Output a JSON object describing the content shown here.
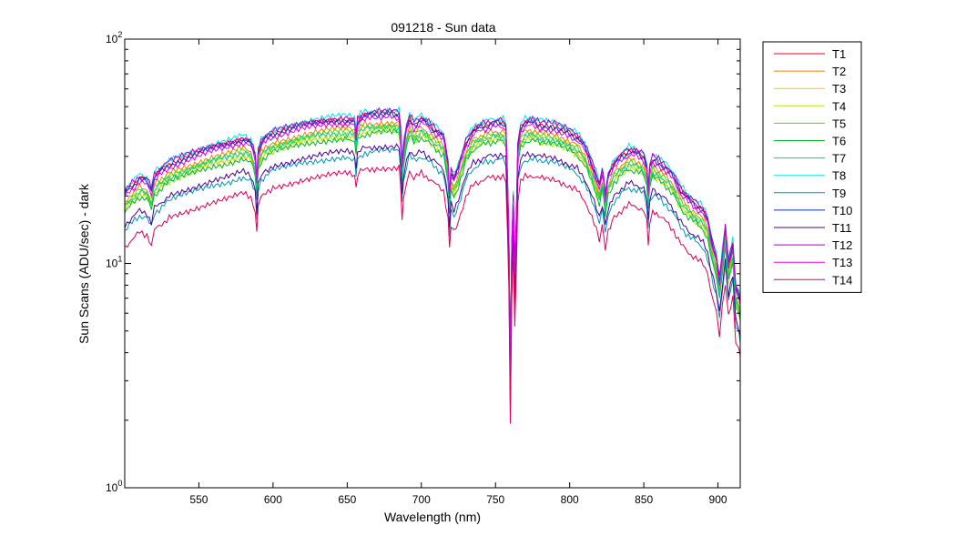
{
  "chart_data": {
    "type": "line",
    "title": "091218 - Sun data",
    "xlabel": "Wavelength (nm)",
    "ylabel": "Sun Scans (ADU/sec) - dark",
    "xlim": [
      500,
      915
    ],
    "ylim": [
      1,
      100
    ],
    "yscale": "log",
    "x_ticks": [
      550,
      600,
      650,
      700,
      750,
      800,
      850,
      900
    ],
    "y_ticks": [
      {
        "base": "10",
        "exp": "0"
      },
      {
        "base": "10",
        "exp": "1"
      },
      {
        "base": "10",
        "exp": "2"
      }
    ],
    "grid": false,
    "legend": "outside-right",
    "base_curve": {
      "x": [
        500,
        505,
        510,
        515,
        518,
        520,
        525,
        530,
        540,
        550,
        560,
        570,
        580,
        585,
        588,
        589,
        590,
        592,
        595,
        600,
        610,
        620,
        630,
        640,
        650,
        655,
        656,
        657,
        659,
        662,
        670,
        680,
        685,
        686,
        687,
        688,
        690,
        692,
        695,
        700,
        705,
        710,
        715,
        718,
        719,
        720,
        722,
        725,
        728,
        730,
        735,
        740,
        745,
        750,
        755,
        757,
        758,
        759,
        760,
        761,
        762,
        763,
        764,
        765,
        767,
        770,
        775,
        780,
        790,
        800,
        805,
        810,
        815,
        818,
        820,
        822,
        823,
        824,
        826,
        830,
        835,
        840,
        845,
        850,
        852,
        853,
        854,
        856,
        860,
        865,
        870,
        875,
        880,
        885,
        890,
        893,
        895,
        897,
        899,
        901,
        903,
        905,
        907,
        910,
        912,
        914,
        915
      ],
      "y": [
        18.5,
        20,
        21.5,
        21,
        19,
        22,
        23.5,
        25,
        26.5,
        28,
        29.5,
        30.5,
        32,
        31,
        27,
        21,
        28,
        31,
        32.5,
        34,
        35.5,
        37,
        38,
        38.8,
        39.2,
        38.5,
        33,
        38.5,
        40,
        41,
        41.5,
        42,
        41.5,
        35,
        25,
        30,
        36,
        40,
        37.5,
        39.5,
        37.5,
        35,
        33,
        25,
        18,
        23,
        21.5,
        24,
        28,
        31,
        35,
        36.5,
        37.5,
        38,
        38.2,
        36.5,
        22,
        12,
        3,
        11,
        18,
        8,
        14,
        30,
        36,
        38,
        38.5,
        37.5,
        36.8,
        34.5,
        33,
        30,
        25,
        22,
        20,
        23,
        21,
        18,
        22,
        25,
        27,
        28.5,
        28,
        27,
        24,
        19,
        24,
        26.5,
        25.5,
        24,
        22,
        19,
        17.5,
        16.5,
        15.5,
        14,
        12,
        10.5,
        9.5,
        7.5,
        10,
        13,
        9,
        11,
        7,
        6.5,
        6
      ]
    },
    "series": [
      {
        "name": "T1",
        "color": "#e8001c",
        "scale": 1.12
      },
      {
        "name": "T2",
        "color": "#ff7f00",
        "scale": 1.02
      },
      {
        "name": "T3",
        "color": "#e6d100",
        "scale": 0.96
      },
      {
        "name": "T4",
        "color": "#b5e61d",
        "scale": 0.93
      },
      {
        "name": "T5",
        "color": "#5fd400",
        "scale": 0.99
      },
      {
        "name": "T6",
        "color": "#00b82c",
        "scale": 0.92
      },
      {
        "name": "T7",
        "color": "#00d28c",
        "scale": 0.97
      },
      {
        "name": "T8",
        "color": "#00e6e6",
        "scale": 1.16
      },
      {
        "name": "T9",
        "color": "#0096b4",
        "scale": 0.76
      },
      {
        "name": "T10",
        "color": "#0032c8",
        "scale": 1.1
      },
      {
        "name": "T11",
        "color": "#4b0096",
        "scale": 0.8
      },
      {
        "name": "T12",
        "color": "#a000c8",
        "scale": 1.14
      },
      {
        "name": "T13",
        "color": "#e600e6",
        "scale": 1.07
      },
      {
        "name": "T14",
        "color": "#e0005a",
        "scale": 0.64
      }
    ]
  }
}
